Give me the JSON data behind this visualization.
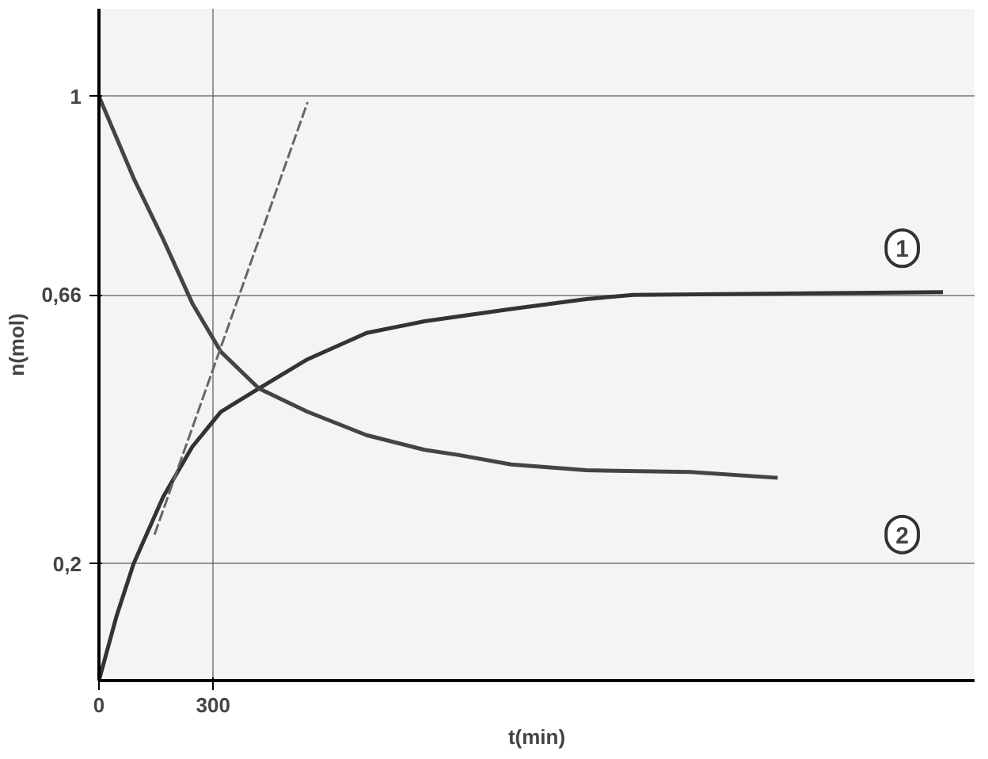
{
  "chart_data": {
    "type": "line",
    "xlabel": "t(min)",
    "ylabel": "n(mol)",
    "xlim": [
      0,
      2300
    ],
    "ylim": [
      0,
      1.15
    ],
    "xticks": [
      0,
      300
    ],
    "yticks": [
      {
        "value": 0.2,
        "label": "0,2"
      },
      {
        "value": 0.66,
        "label": "0,66"
      },
      1
    ],
    "grid": true,
    "marker": "none",
    "series": [
      {
        "color": "#333333",
        "x": [
          0,
          46,
          91,
          169,
          245,
          320,
          420,
          548,
          703,
          855,
          1083,
          1280,
          1403,
          2217
        ],
        "values": [
          0,
          0.11,
          0.2,
          0.315,
          0.4,
          0.46,
          0.5,
          0.55,
          0.595,
          0.615,
          0.636,
          0.653,
          0.66,
          0.665
        ]
      },
      {
        "color": "#444444",
        "x": [
          0,
          91,
          169,
          245,
          320,
          420,
          548,
          703,
          855,
          946,
          1083,
          1280,
          1554,
          1783
        ],
        "values": [
          1,
          0.86,
          0.755,
          0.646,
          0.563,
          0.5,
          0.46,
          0.42,
          0.395,
          0.386,
          0.37,
          0.36,
          0.357,
          0.347
        ]
      },
      {
        "color": "#666666",
        "line_style": "dashed",
        "x": [
          146,
          548
        ],
        "values": [
          0.25,
          0.99
        ]
      }
    ],
    "annotations": [
      {
        "text": "1",
        "x": 2110,
        "y": 0.74
      },
      {
        "text": "2",
        "x": 2110,
        "y": 0.25
      }
    ]
  }
}
